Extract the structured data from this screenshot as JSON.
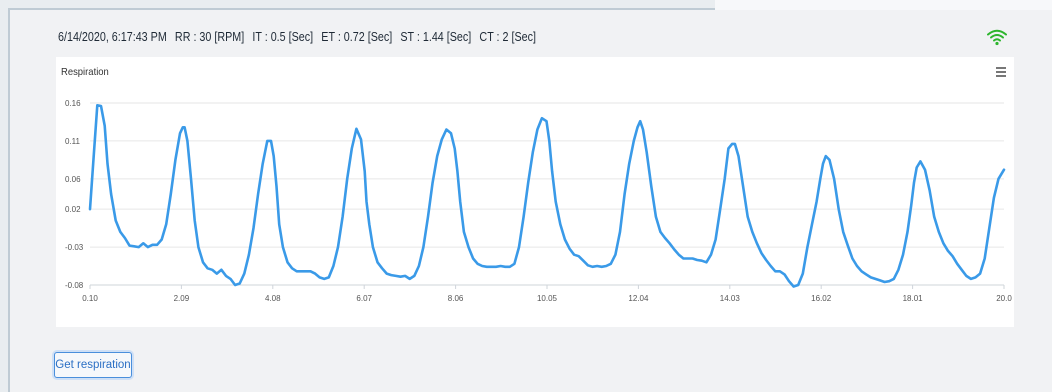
{
  "status": {
    "timestamp": "6/14/2020, 6:17:43 PM",
    "rr": "RR : 30 [RPM]",
    "it": "IT : 0.5 [Sec]",
    "et": "ET : 0.72 [Sec]",
    "st": "ST : 1.44 [Sec]",
    "ct": "CT : 2 [Sec]"
  },
  "icons": {
    "signal": "wifi-icon",
    "menu": "hamburger-menu-icon"
  },
  "colors": {
    "signal": "#2db52d",
    "line": "#3a9ae8",
    "button": "#2b6fc4"
  },
  "button": {
    "label": "Get respiration"
  },
  "chart_data": {
    "type": "line",
    "title": "Respiration",
    "xlabel": "",
    "ylabel": "",
    "xlim": [
      0.1,
      20.0
    ],
    "ylim": [
      -0.08,
      0.16
    ],
    "grid": true,
    "legend": "none",
    "xticks": [
      0.1,
      2.09,
      4.08,
      6.07,
      8.06,
      10.05,
      12.04,
      14.03,
      16.02,
      18.01,
      20.0
    ],
    "xtick_labels": [
      "0.10",
      "2.09",
      "4.08",
      "6.07",
      "8.06",
      "10.05",
      "12.04",
      "14.03",
      "16.02",
      "18.01",
      "20.0"
    ],
    "yticks": [
      -0.08,
      -0.03,
      0.02,
      0.06,
      0.11,
      0.16
    ],
    "ytick_labels": [
      "-0.08",
      "-0.03",
      "0.02",
      "0.06",
      "0.11",
      "0.16"
    ],
    "series": [
      {
        "x": [
          0.1,
          0.18,
          0.26,
          0.34,
          0.42,
          0.48,
          0.56,
          0.66,
          0.76,
          0.86,
          0.96,
          1.06,
          1.16,
          1.26,
          1.36,
          1.46,
          1.56,
          1.66,
          1.76,
          1.86,
          1.96,
          2.06,
          2.12,
          2.16,
          2.22,
          2.3,
          2.38,
          2.46,
          2.56,
          2.66,
          2.76,
          2.86,
          2.96,
          3.06,
          3.16,
          3.26,
          3.36,
          3.46,
          3.56,
          3.66,
          3.76,
          3.86,
          3.96,
          4.04,
          4.1,
          4.16,
          4.22,
          4.3,
          4.4,
          4.5,
          4.6,
          4.7,
          4.8,
          4.9,
          5.0,
          5.1,
          5.2,
          5.3,
          5.4,
          5.5,
          5.6,
          5.7,
          5.8,
          5.9,
          6.0,
          6.08,
          6.12,
          6.18,
          6.26,
          6.36,
          6.46,
          6.56,
          6.66,
          6.76,
          6.86,
          6.96,
          7.06,
          7.16,
          7.26,
          7.36,
          7.46,
          7.56,
          7.66,
          7.76,
          7.86,
          7.96,
          8.04,
          8.1,
          8.16,
          8.24,
          8.34,
          8.44,
          8.54,
          8.64,
          8.74,
          8.84,
          8.94,
          9.04,
          9.14,
          9.24,
          9.34,
          9.44,
          9.54,
          9.64,
          9.74,
          9.84,
          9.94,
          10.04,
          10.1,
          10.16,
          10.24,
          10.34,
          10.44,
          10.54,
          10.64,
          10.74,
          10.84,
          10.94,
          11.04,
          11.14,
          11.24,
          11.34,
          11.44,
          11.54,
          11.64,
          11.74,
          11.84,
          11.94,
          12.02,
          12.08,
          12.14,
          12.22,
          12.32,
          12.42,
          12.52,
          12.62,
          12.72,
          12.82,
          12.92,
          13.02,
          13.12,
          13.22,
          13.32,
          13.42,
          13.52,
          13.62,
          13.72,
          13.82,
          13.92,
          14.0,
          14.08,
          14.14,
          14.22,
          14.32,
          14.42,
          14.52,
          14.62,
          14.72,
          14.82,
          14.92,
          15.02,
          15.12,
          15.22,
          15.32,
          15.42,
          15.52,
          15.62,
          15.72,
          15.82,
          15.92,
          16.0,
          16.06,
          16.12,
          16.2,
          16.3,
          16.4,
          16.5,
          16.6,
          16.7,
          16.8,
          16.9,
          17.0,
          17.1,
          17.2,
          17.3,
          17.4,
          17.5,
          17.6,
          17.7,
          17.8,
          17.9,
          17.98,
          18.04,
          18.1,
          18.18,
          18.28,
          18.38,
          18.48,
          18.58,
          18.68,
          18.78,
          18.88,
          18.98,
          19.08,
          19.18,
          19.28,
          19.38,
          19.48,
          19.58,
          19.68,
          19.78,
          19.88,
          20.0
        ],
        "y": [
          0.02,
          0.09,
          0.157,
          0.156,
          0.13,
          0.08,
          0.04,
          0.005,
          -0.01,
          -0.018,
          -0.028,
          -0.029,
          -0.03,
          -0.025,
          -0.03,
          -0.027,
          -0.027,
          -0.02,
          0.0,
          0.04,
          0.085,
          0.12,
          0.128,
          0.128,
          0.11,
          0.06,
          0.005,
          -0.03,
          -0.05,
          -0.058,
          -0.06,
          -0.065,
          -0.06,
          -0.068,
          -0.072,
          -0.08,
          -0.078,
          -0.065,
          -0.04,
          -0.005,
          0.04,
          0.08,
          0.11,
          0.11,
          0.09,
          0.05,
          0.0,
          -0.03,
          -0.05,
          -0.058,
          -0.062,
          -0.062,
          -0.062,
          -0.062,
          -0.065,
          -0.07,
          -0.072,
          -0.07,
          -0.055,
          -0.03,
          0.01,
          0.06,
          0.1,
          0.126,
          0.112,
          0.07,
          0.03,
          0.0,
          -0.03,
          -0.05,
          -0.058,
          -0.065,
          -0.067,
          -0.068,
          -0.069,
          -0.068,
          -0.072,
          -0.068,
          -0.055,
          -0.03,
          0.01,
          0.055,
          0.09,
          0.112,
          0.125,
          0.12,
          0.1,
          0.07,
          0.03,
          -0.01,
          -0.03,
          -0.045,
          -0.052,
          -0.055,
          -0.056,
          -0.056,
          -0.056,
          -0.055,
          -0.056,
          -0.056,
          -0.052,
          -0.03,
          0.01,
          0.055,
          0.095,
          0.125,
          0.14,
          0.136,
          0.11,
          0.07,
          0.03,
          0.0,
          -0.02,
          -0.032,
          -0.04,
          -0.042,
          -0.048,
          -0.054,
          -0.056,
          -0.055,
          -0.056,
          -0.055,
          -0.052,
          -0.04,
          -0.01,
          0.04,
          0.08,
          0.11,
          0.128,
          0.136,
          0.125,
          0.095,
          0.05,
          0.01,
          -0.01,
          -0.018,
          -0.025,
          -0.033,
          -0.04,
          -0.045,
          -0.045,
          -0.045,
          -0.047,
          -0.048,
          -0.05,
          -0.04,
          -0.02,
          0.02,
          0.06,
          0.1,
          0.106,
          0.106,
          0.09,
          0.05,
          0.01,
          -0.01,
          -0.025,
          -0.038,
          -0.047,
          -0.055,
          -0.062,
          -0.062,
          -0.066,
          -0.075,
          -0.082,
          -0.08,
          -0.065,
          -0.03,
          0.0,
          0.03,
          0.06,
          0.08,
          0.09,
          0.085,
          0.06,
          0.02,
          -0.01,
          -0.028,
          -0.045,
          -0.055,
          -0.062,
          -0.066,
          -0.07,
          -0.072,
          -0.074,
          -0.076,
          -0.075,
          -0.072,
          -0.06,
          -0.04,
          -0.01,
          0.025,
          0.055,
          0.075,
          0.083,
          0.072,
          0.045,
          0.01,
          -0.01,
          -0.025,
          -0.035,
          -0.042,
          -0.052,
          -0.06,
          -0.068,
          -0.072,
          -0.07,
          -0.065,
          -0.045,
          -0.005,
          0.035,
          0.06,
          0.072
        ]
      }
    ]
  }
}
